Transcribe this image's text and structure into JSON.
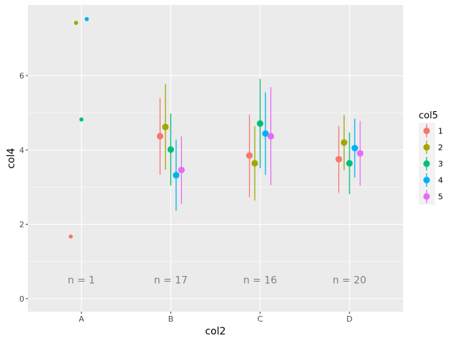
{
  "chart_data": {
    "type": "scatter",
    "title": "",
    "xlabel": "col2",
    "ylabel": "col4",
    "categories": [
      "A",
      "B",
      "C",
      "D"
    ],
    "yticks": [
      0,
      2,
      4,
      6
    ],
    "ylim": [
      -0.35,
      7.9
    ],
    "grid": true,
    "legend": {
      "title": "col5",
      "position": "right",
      "entries": [
        "1",
        "2",
        "3",
        "4",
        "5"
      ]
    },
    "colors": {
      "1": "#F8766D",
      "2": "#A3A500",
      "3": "#00BF7D",
      "4": "#00B0F6",
      "5": "#E76BF3",
      "panel": "#EBEBEB",
      "gridline": "#FFFFFF",
      "axis_text": "#4D4D4D",
      "annotation": "#808080"
    },
    "series": [
      {
        "name": "1",
        "points": [
          {
            "x": "A",
            "y": 1.67
          },
          {
            "x": "B",
            "y": 4.37,
            "ymin": 3.33,
            "ymax": 5.4
          },
          {
            "x": "C",
            "y": 3.85,
            "ymin": 2.73,
            "ymax": 4.95
          },
          {
            "x": "D",
            "y": 3.75,
            "ymin": 2.85,
            "ymax": 4.65
          }
        ]
      },
      {
        "name": "2",
        "points": [
          {
            "x": "A",
            "y": 7.42
          },
          {
            "x": "B",
            "y": 4.62,
            "ymin": 3.47,
            "ymax": 5.77
          },
          {
            "x": "C",
            "y": 3.64,
            "ymin": 2.64,
            "ymax": 4.64
          },
          {
            "x": "D",
            "y": 4.2,
            "ymin": 3.46,
            "ymax": 4.94
          }
        ]
      },
      {
        "name": "3",
        "points": [
          {
            "x": "A",
            "y": 4.82
          },
          {
            "x": "B",
            "y": 4.01,
            "ymin": 3.04,
            "ymax": 4.98
          },
          {
            "x": "C",
            "y": 4.71,
            "ymin": 3.51,
            "ymax": 5.91
          },
          {
            "x": "D",
            "y": 3.64,
            "ymin": 2.81,
            "ymax": 4.47
          }
        ]
      },
      {
        "name": "4",
        "points": [
          {
            "x": "A",
            "y": 7.52
          },
          {
            "x": "B",
            "y": 3.32,
            "ymin": 2.36,
            "ymax": 4.28
          },
          {
            "x": "C",
            "y": 4.44,
            "ymin": 3.33,
            "ymax": 5.55
          },
          {
            "x": "D",
            "y": 4.05,
            "ymin": 3.26,
            "ymax": 4.84
          }
        ]
      },
      {
        "name": "5",
        "points": [
          {
            "x": "A",
            "y": null
          },
          {
            "x": "B",
            "y": 3.46,
            "ymin": 2.55,
            "ymax": 4.37
          },
          {
            "x": "C",
            "y": 4.37,
            "ymin": 3.05,
            "ymax": 5.69
          },
          {
            "x": "D",
            "y": 3.91,
            "ymin": 3.04,
            "ymax": 4.78
          }
        ]
      }
    ],
    "annotations": [
      {
        "x": "A",
        "y": 0.5,
        "text": "n = 1"
      },
      {
        "x": "B",
        "y": 0.5,
        "text": "n = 17"
      },
      {
        "x": "C",
        "y": 0.5,
        "text": "n = 16"
      },
      {
        "x": "D",
        "y": 0.5,
        "text": "n = 20"
      }
    ]
  }
}
